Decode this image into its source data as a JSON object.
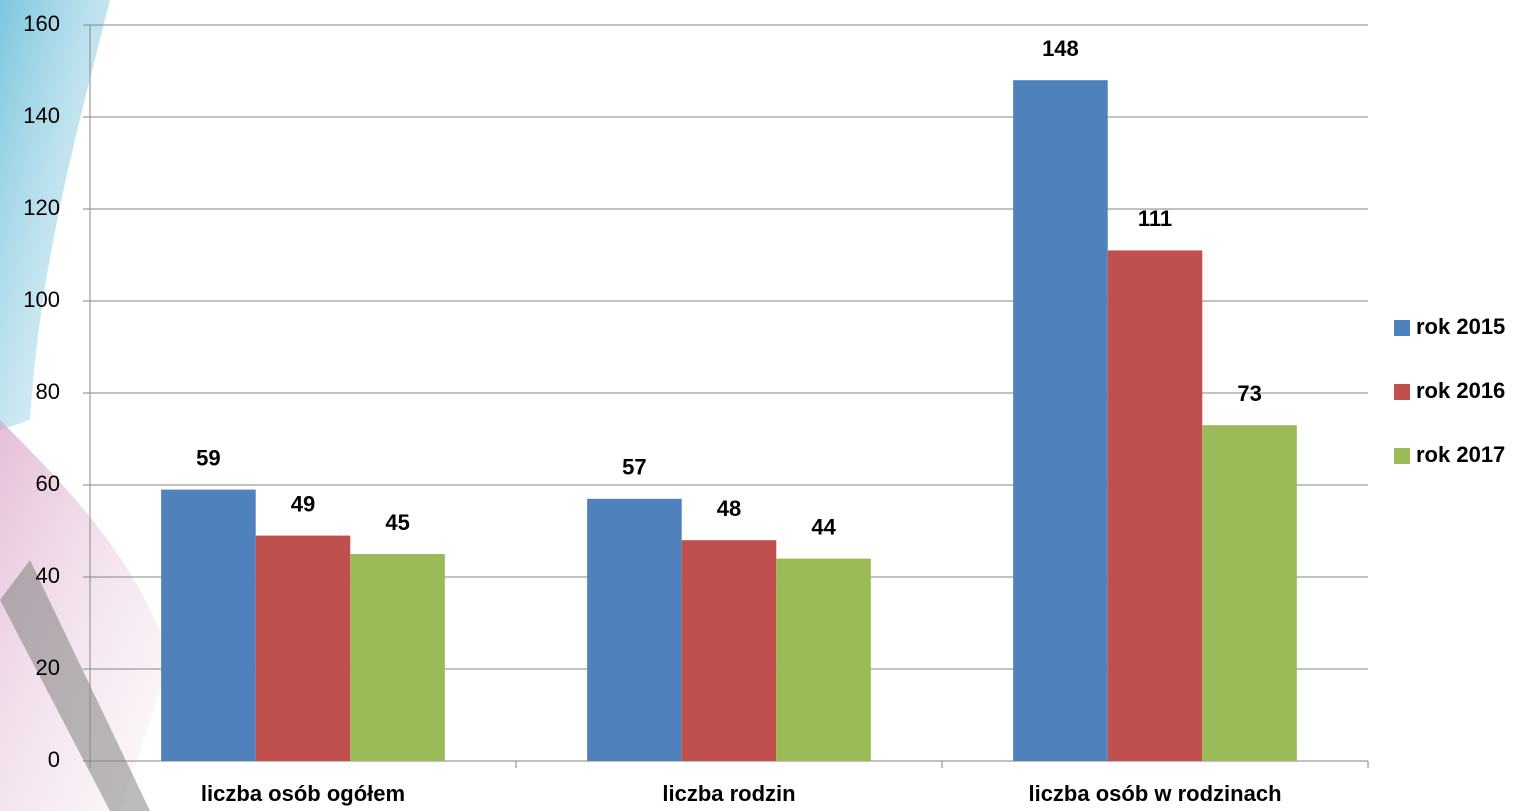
{
  "chart_data": {
    "type": "bar",
    "categories": [
      "liczba osób ogółem",
      "liczba rodzin",
      "liczba osób w rodzinach"
    ],
    "series": [
      {
        "name": "rok 2015",
        "color": "#4f81bd",
        "values": [
          59,
          57,
          148
        ]
      },
      {
        "name": "rok 2016",
        "color": "#c0504d",
        "values": [
          49,
          48,
          111
        ]
      },
      {
        "name": "rok 2017",
        "color": "#9bbb59",
        "values": [
          45,
          44,
          73
        ]
      }
    ],
    "ylim": [
      0,
      160
    ],
    "yticks": [
      0,
      20,
      40,
      60,
      80,
      100,
      120,
      140,
      160
    ],
    "grid": true,
    "legend": "right"
  }
}
